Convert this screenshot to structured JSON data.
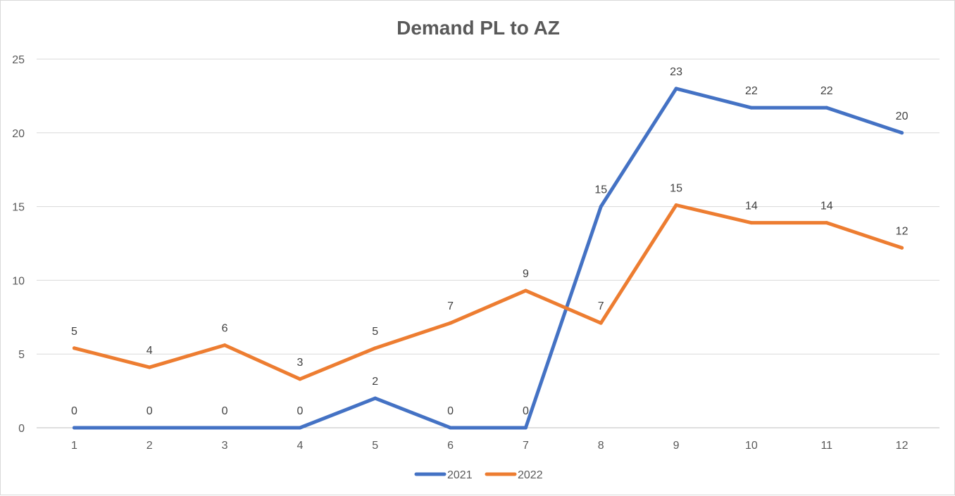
{
  "chart_data": {
    "type": "line",
    "title": "Demand PL to AZ",
    "xlabel": "",
    "ylabel": "",
    "categories": [
      "1",
      "2",
      "3",
      "4",
      "5",
      "6",
      "7",
      "8",
      "9",
      "10",
      "11",
      "12"
    ],
    "ylim": [
      0,
      25
    ],
    "yticks": [
      0,
      5,
      10,
      15,
      20,
      25
    ],
    "grid": true,
    "legend_position": "bottom",
    "series": [
      {
        "name": "2021",
        "color": "#4472c4",
        "values": [
          0,
          0,
          0,
          0,
          2,
          0,
          0,
          15,
          23,
          21.7,
          21.7,
          20
        ],
        "labels": [
          "0",
          "0",
          "0",
          "0",
          "2",
          "0",
          "0",
          "15",
          "23",
          "22",
          "22",
          "20"
        ]
      },
      {
        "name": "2022",
        "color": "#ed7d31",
        "values": [
          5.4,
          4.1,
          5.6,
          3.3,
          5.4,
          7.1,
          9.3,
          7.1,
          15.1,
          13.9,
          13.9,
          12.2
        ],
        "labels": [
          "5",
          "4",
          "6",
          "3",
          "5",
          "7",
          "9",
          "7",
          "15",
          "14",
          "14",
          "12"
        ]
      }
    ]
  }
}
